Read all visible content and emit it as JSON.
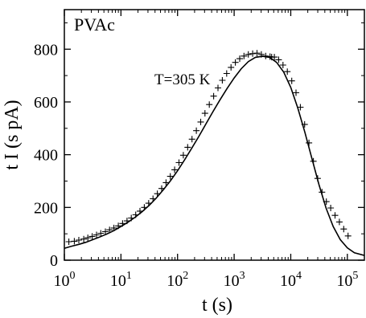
{
  "chart_data": {
    "type": "scatter",
    "title": "",
    "panel_label": "PVAc",
    "annotation": "T=305 K",
    "xlabel": "t (s)",
    "ylabel": "t I (s pA)",
    "xscale": "log",
    "xlim": [
      1,
      200000
    ],
    "ylim": [
      0,
      950
    ],
    "grid": false,
    "x_tick_labels": [
      {
        "base": "10",
        "exp": "0",
        "value": 1
      },
      {
        "base": "10",
        "exp": "1",
        "value": 10
      },
      {
        "base": "10",
        "exp": "2",
        "value": 100
      },
      {
        "base": "10",
        "exp": "3",
        "value": 1000
      },
      {
        "base": "10",
        "exp": "4",
        "value": 10000
      },
      {
        "base": "10",
        "exp": "5",
        "value": 100000
      }
    ],
    "y_ticks": [
      0,
      200,
      400,
      600,
      800
    ],
    "series": [
      {
        "marker": "+",
        "style": "markers",
        "points": [
          [
            1.2,
            70
          ],
          [
            1.5,
            72
          ],
          [
            1.8,
            76
          ],
          [
            2.2,
            80
          ],
          [
            2.6,
            85
          ],
          [
            3.1,
            90
          ],
          [
            3.7,
            96
          ],
          [
            4.4,
            102
          ],
          [
            5.3,
            108
          ],
          [
            6.3,
            115
          ],
          [
            7.5,
            122
          ],
          [
            9,
            130
          ],
          [
            10.7,
            139
          ],
          [
            12.8,
            149
          ],
          [
            15.2,
            160
          ],
          [
            18.2,
            172
          ],
          [
            21.7,
            186
          ],
          [
            25.9,
            200
          ],
          [
            30.9,
            216
          ],
          [
            36.8,
            233
          ],
          [
            43.9,
            252
          ],
          [
            52.4,
            272
          ],
          [
            62.5,
            294
          ],
          [
            74.5,
            318
          ],
          [
            88.9,
            343
          ],
          [
            106,
            370
          ],
          [
            126.5,
            398
          ],
          [
            150.9,
            428
          ],
          [
            180,
            459
          ],
          [
            214.6,
            491
          ],
          [
            256,
            524
          ],
          [
            305.4,
            557
          ],
          [
            364.2,
            590
          ],
          [
            434.5,
            622
          ],
          [
            518.3,
            653
          ],
          [
            618.2,
            682
          ],
          [
            737.4,
            708
          ],
          [
            879.6,
            731
          ],
          [
            1049,
            750
          ],
          [
            1252,
            764
          ],
          [
            1493,
            774
          ],
          [
            1781,
            780
          ],
          [
            2124,
            783
          ],
          [
            2534,
            785
          ],
          [
            3023,
            780
          ],
          [
            3605,
            774
          ],
          [
            4300,
            772
          ],
          [
            4600,
            770
          ],
          [
            5130,
            770
          ],
          [
            6120,
            760
          ],
          [
            7300,
            740
          ],
          [
            8700,
            715
          ],
          [
            10400,
            680
          ],
          [
            12400,
            635
          ],
          [
            14800,
            580
          ],
          [
            17600,
            515
          ],
          [
            21000,
            445
          ],
          [
            25100,
            375
          ],
          [
            29900,
            310
          ],
          [
            35700,
            258
          ],
          [
            42600,
            222
          ],
          [
            50800,
            198
          ],
          [
            60600,
            170
          ],
          [
            72300,
            145
          ],
          [
            86200,
            118
          ],
          [
            102800,
            92
          ]
        ]
      },
      {
        "marker": "none",
        "style": "line",
        "points": [
          [
            1,
            45
          ],
          [
            1.3,
            52
          ],
          [
            1.8,
            60
          ],
          [
            2.4,
            68
          ],
          [
            3.2,
            78
          ],
          [
            4.2,
            88
          ],
          [
            5.6,
            99
          ],
          [
            7.5,
            112
          ],
          [
            10,
            128
          ],
          [
            13.3,
            144
          ],
          [
            17.8,
            163
          ],
          [
            23.7,
            184
          ],
          [
            31.6,
            208
          ],
          [
            42.2,
            236
          ],
          [
            56.2,
            267
          ],
          [
            75,
            301
          ],
          [
            100,
            339
          ],
          [
            133,
            380
          ],
          [
            178,
            424
          ],
          [
            237,
            469
          ],
          [
            316,
            516
          ],
          [
            422,
            563
          ],
          [
            562,
            608
          ],
          [
            750,
            651
          ],
          [
            1000,
            691
          ],
          [
            1334,
            726
          ],
          [
            1778,
            753
          ],
          [
            2371,
            769
          ],
          [
            3162,
            773
          ],
          [
            4217,
            769
          ],
          [
            5623,
            750
          ],
          [
            7499,
            713
          ],
          [
            10000,
            655
          ],
          [
            13335,
            577
          ],
          [
            17783,
            485
          ],
          [
            23714,
            385
          ],
          [
            31623,
            286
          ],
          [
            42170,
            197
          ],
          [
            56234,
            128
          ],
          [
            74989,
            78
          ],
          [
            100000,
            47
          ],
          [
            133352,
            28
          ],
          [
            200000,
            18
          ]
        ]
      }
    ]
  }
}
